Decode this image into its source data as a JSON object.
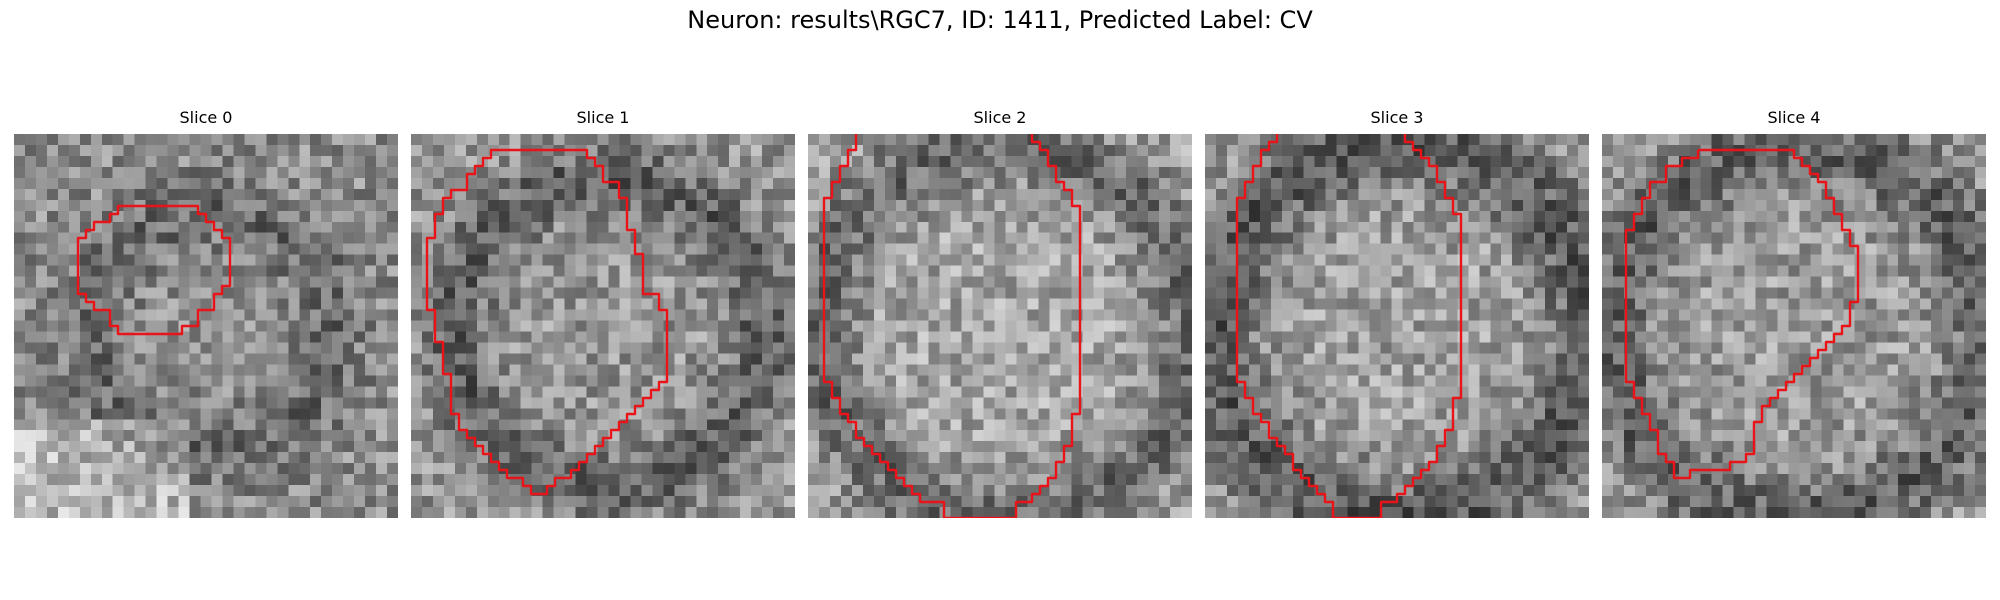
{
  "figure": {
    "title": "Neuron: results\\RGC7, ID: 1411, Predicted Label: CV"
  },
  "panels": [
    {
      "title": "Slice 0",
      "seed": 11,
      "base": 140,
      "dark_ring": 105,
      "ring_radius": 11,
      "ring_width": 3.0,
      "bright_bottom_left": true,
      "contour": [
        [
          15,
          9
        ],
        [
          23,
          9
        ],
        [
          23,
          10
        ],
        [
          24,
          10
        ],
        [
          24,
          11
        ],
        [
          25,
          11
        ],
        [
          25,
          12
        ],
        [
          26,
          12
        ],
        [
          26,
          13
        ],
        [
          27,
          13
        ],
        [
          27,
          19
        ],
        [
          26,
          19
        ],
        [
          26,
          20
        ],
        [
          25,
          20
        ],
        [
          25,
          22
        ],
        [
          23,
          22
        ],
        [
          23,
          24
        ],
        [
          21,
          24
        ],
        [
          21,
          25
        ],
        [
          13,
          25
        ],
        [
          13,
          24
        ],
        [
          12,
          24
        ],
        [
          12,
          22
        ],
        [
          10,
          22
        ],
        [
          10,
          21
        ],
        [
          9,
          21
        ],
        [
          9,
          20
        ],
        [
          8,
          20
        ],
        [
          8,
          13
        ],
        [
          9,
          13
        ],
        [
          9,
          12
        ],
        [
          10,
          12
        ],
        [
          10,
          11
        ],
        [
          12,
          11
        ],
        [
          12,
          10
        ],
        [
          13,
          10
        ],
        [
          13,
          9
        ],
        [
          15,
          9
        ]
      ]
    },
    {
      "title": "Slice 1",
      "seed": 23,
      "base": 150,
      "dark_ring": 95,
      "ring_radius": 14,
      "ring_width": 3.0,
      "bright_bottom_left": false,
      "contour": [
        [
          11,
          2
        ],
        [
          22,
          2
        ],
        [
          22,
          3
        ],
        [
          23,
          3
        ],
        [
          23,
          4
        ],
        [
          24,
          4
        ],
        [
          24,
          6
        ],
        [
          26,
          6
        ],
        [
          26,
          8
        ],
        [
          27,
          8
        ],
        [
          27,
          12
        ],
        [
          28,
          12
        ],
        [
          28,
          15
        ],
        [
          29,
          15
        ],
        [
          29,
          20
        ],
        [
          31,
          20
        ],
        [
          31,
          22
        ],
        [
          32,
          22
        ],
        [
          32,
          31
        ],
        [
          31,
          31
        ],
        [
          31,
          32
        ],
        [
          30,
          32
        ],
        [
          30,
          33
        ],
        [
          29,
          33
        ],
        [
          29,
          34
        ],
        [
          28,
          34
        ],
        [
          28,
          35
        ],
        [
          27,
          35
        ],
        [
          27,
          36
        ],
        [
          26,
          36
        ],
        [
          26,
          37
        ],
        [
          25,
          37
        ],
        [
          25,
          38
        ],
        [
          24,
          38
        ],
        [
          24,
          39
        ],
        [
          23,
          39
        ],
        [
          23,
          40
        ],
        [
          22,
          40
        ],
        [
          22,
          41
        ],
        [
          21,
          41
        ],
        [
          21,
          42
        ],
        [
          20,
          42
        ],
        [
          20,
          43
        ],
        [
          18,
          43
        ],
        [
          18,
          44
        ],
        [
          17,
          44
        ],
        [
          17,
          45
        ],
        [
          15,
          45
        ],
        [
          15,
          44
        ],
        [
          14,
          44
        ],
        [
          14,
          43
        ],
        [
          12,
          43
        ],
        [
          12,
          42
        ],
        [
          11,
          42
        ],
        [
          11,
          41
        ],
        [
          10,
          41
        ],
        [
          10,
          40
        ],
        [
          9,
          40
        ],
        [
          9,
          39
        ],
        [
          8,
          39
        ],
        [
          8,
          38
        ],
        [
          7,
          38
        ],
        [
          7,
          37
        ],
        [
          6,
          37
        ],
        [
          6,
          35
        ],
        [
          5,
          35
        ],
        [
          5,
          30
        ],
        [
          4,
          30
        ],
        [
          4,
          26
        ],
        [
          3,
          26
        ],
        [
          3,
          22
        ],
        [
          2,
          22
        ],
        [
          2,
          13
        ],
        [
          3,
          13
        ],
        [
          3,
          10
        ],
        [
          4,
          10
        ],
        [
          4,
          8
        ],
        [
          5,
          8
        ],
        [
          5,
          7
        ],
        [
          7,
          7
        ],
        [
          7,
          5
        ],
        [
          8,
          5
        ],
        [
          8,
          4
        ],
        [
          9,
          4
        ],
        [
          9,
          3
        ],
        [
          10,
          3
        ],
        [
          10,
          2
        ],
        [
          11,
          2
        ]
      ]
    },
    {
      "title": "Slice 2",
      "seed": 37,
      "base": 165,
      "dark_ring": 105,
      "ring_radius": 17,
      "ring_width": 3.5,
      "bright_bottom_left": false,
      "contour": [
        [
          6,
          0
        ],
        [
          6,
          2
        ],
        [
          5,
          2
        ],
        [
          5,
          4
        ],
        [
          4,
          4
        ],
        [
          4,
          6
        ],
        [
          3,
          6
        ],
        [
          3,
          8
        ],
        [
          2,
          8
        ],
        [
          2,
          31
        ],
        [
          3,
          31
        ],
        [
          3,
          33
        ],
        [
          4,
          33
        ],
        [
          4,
          35
        ],
        [
          5,
          35
        ],
        [
          5,
          36
        ],
        [
          6,
          36
        ],
        [
          6,
          38
        ],
        [
          7,
          38
        ],
        [
          7,
          39
        ],
        [
          8,
          39
        ],
        [
          8,
          40
        ],
        [
          9,
          40
        ],
        [
          9,
          41
        ],
        [
          10,
          41
        ],
        [
          10,
          42
        ],
        [
          11,
          42
        ],
        [
          11,
          43
        ],
        [
          12,
          43
        ],
        [
          12,
          44
        ],
        [
          13,
          44
        ],
        [
          13,
          45
        ],
        [
          14,
          45
        ],
        [
          14,
          46
        ],
        [
          17,
          46
        ],
        [
          17,
          48
        ],
        [
          26,
          48
        ],
        [
          26,
          46
        ],
        [
          28,
          46
        ],
        [
          28,
          45
        ],
        [
          29,
          45
        ],
        [
          29,
          44
        ],
        [
          30,
          44
        ],
        [
          30,
          43
        ],
        [
          31,
          43
        ],
        [
          31,
          41
        ],
        [
          32,
          41
        ],
        [
          32,
          39
        ],
        [
          33,
          39
        ],
        [
          33,
          35
        ],
        [
          34,
          35
        ],
        [
          34,
          9
        ],
        [
          33,
          9
        ],
        [
          33,
          7
        ],
        [
          32,
          7
        ],
        [
          32,
          6
        ],
        [
          31,
          6
        ],
        [
          31,
          4
        ],
        [
          30,
          4
        ],
        [
          30,
          2
        ],
        [
          29,
          2
        ],
        [
          29,
          1
        ],
        [
          28,
          1
        ],
        [
          28,
          0
        ]
      ]
    },
    {
      "title": "Slice 3",
      "seed": 53,
      "base": 160,
      "dark_ring": 90,
      "ring_radius": 17,
      "ring_width": 4.0,
      "bright_bottom_left": false,
      "contour": [
        [
          9,
          0
        ],
        [
          9,
          1
        ],
        [
          8,
          1
        ],
        [
          8,
          2
        ],
        [
          7,
          2
        ],
        [
          7,
          4
        ],
        [
          6,
          4
        ],
        [
          6,
          6
        ],
        [
          5,
          6
        ],
        [
          5,
          8
        ],
        [
          4,
          8
        ],
        [
          4,
          31
        ],
        [
          5,
          31
        ],
        [
          5,
          33
        ],
        [
          6,
          33
        ],
        [
          6,
          35
        ],
        [
          7,
          35
        ],
        [
          7,
          36
        ],
        [
          8,
          36
        ],
        [
          8,
          38
        ],
        [
          9,
          38
        ],
        [
          9,
          39
        ],
        [
          10,
          39
        ],
        [
          10,
          40
        ],
        [
          11,
          40
        ],
        [
          11,
          42
        ],
        [
          12,
          42
        ],
        [
          12,
          43
        ],
        [
          13,
          43
        ],
        [
          13,
          44
        ],
        [
          14,
          44
        ],
        [
          14,
          45
        ],
        [
          15,
          45
        ],
        [
          15,
          46
        ],
        [
          16,
          46
        ],
        [
          16,
          48
        ],
        [
          22,
          48
        ],
        [
          22,
          46
        ],
        [
          24,
          46
        ],
        [
          24,
          45
        ],
        [
          25,
          45
        ],
        [
          25,
          44
        ],
        [
          26,
          44
        ],
        [
          26,
          43
        ],
        [
          27,
          43
        ],
        [
          27,
          42
        ],
        [
          28,
          42
        ],
        [
          28,
          41
        ],
        [
          29,
          41
        ],
        [
          29,
          39
        ],
        [
          30,
          39
        ],
        [
          30,
          37
        ],
        [
          31,
          37
        ],
        [
          31,
          33
        ],
        [
          32,
          33
        ],
        [
          32,
          10
        ],
        [
          31,
          10
        ],
        [
          31,
          8
        ],
        [
          30,
          8
        ],
        [
          30,
          6
        ],
        [
          29,
          6
        ],
        [
          29,
          4
        ],
        [
          28,
          4
        ],
        [
          28,
          3
        ],
        [
          27,
          3
        ],
        [
          27,
          2
        ],
        [
          26,
          2
        ],
        [
          26,
          1
        ],
        [
          25,
          1
        ],
        [
          25,
          0
        ]
      ]
    },
    {
      "title": "Slice 4",
      "seed": 71,
      "base": 155,
      "dark_ring": 95,
      "ring_radius": 17,
      "ring_width": 3.5,
      "bright_bottom_left": false,
      "contour": [
        [
          12,
          2
        ],
        [
          24,
          2
        ],
        [
          24,
          3
        ],
        [
          25,
          3
        ],
        [
          25,
          4
        ],
        [
          26,
          4
        ],
        [
          26,
          5
        ],
        [
          27,
          5
        ],
        [
          27,
          6
        ],
        [
          28,
          6
        ],
        [
          28,
          8
        ],
        [
          29,
          8
        ],
        [
          29,
          10
        ],
        [
          30,
          10
        ],
        [
          30,
          12
        ],
        [
          31,
          12
        ],
        [
          31,
          14
        ],
        [
          32,
          14
        ],
        [
          32,
          21
        ],
        [
          31,
          21
        ],
        [
          31,
          24
        ],
        [
          30,
          24
        ],
        [
          30,
          25
        ],
        [
          29,
          25
        ],
        [
          29,
          26
        ],
        [
          28,
          26
        ],
        [
          28,
          27
        ],
        [
          27,
          27
        ],
        [
          27,
          28
        ],
        [
          26,
          28
        ],
        [
          26,
          29
        ],
        [
          25,
          29
        ],
        [
          25,
          30
        ],
        [
          24,
          30
        ],
        [
          24,
          31
        ],
        [
          23,
          31
        ],
        [
          23,
          32
        ],
        [
          22,
          32
        ],
        [
          22,
          33
        ],
        [
          21,
          33
        ],
        [
          21,
          34
        ],
        [
          20,
          34
        ],
        [
          20,
          36
        ],
        [
          19,
          36
        ],
        [
          19,
          40
        ],
        [
          18,
          40
        ],
        [
          18,
          41
        ],
        [
          16,
          41
        ],
        [
          16,
          42
        ],
        [
          11,
          42
        ],
        [
          11,
          43
        ],
        [
          9,
          43
        ],
        [
          9,
          41
        ],
        [
          8,
          41
        ],
        [
          8,
          40
        ],
        [
          7,
          40
        ],
        [
          7,
          37
        ],
        [
          6,
          37
        ],
        [
          6,
          35
        ],
        [
          5,
          35
        ],
        [
          5,
          33
        ],
        [
          4,
          33
        ],
        [
          4,
          31
        ],
        [
          3,
          31
        ],
        [
          3,
          12
        ],
        [
          4,
          12
        ],
        [
          4,
          10
        ],
        [
          5,
          10
        ],
        [
          5,
          8
        ],
        [
          6,
          8
        ],
        [
          6,
          6
        ],
        [
          8,
          6
        ],
        [
          8,
          4
        ],
        [
          10,
          4
        ],
        [
          10,
          3
        ],
        [
          12,
          3
        ],
        [
          12,
          2
        ]
      ]
    }
  ]
}
